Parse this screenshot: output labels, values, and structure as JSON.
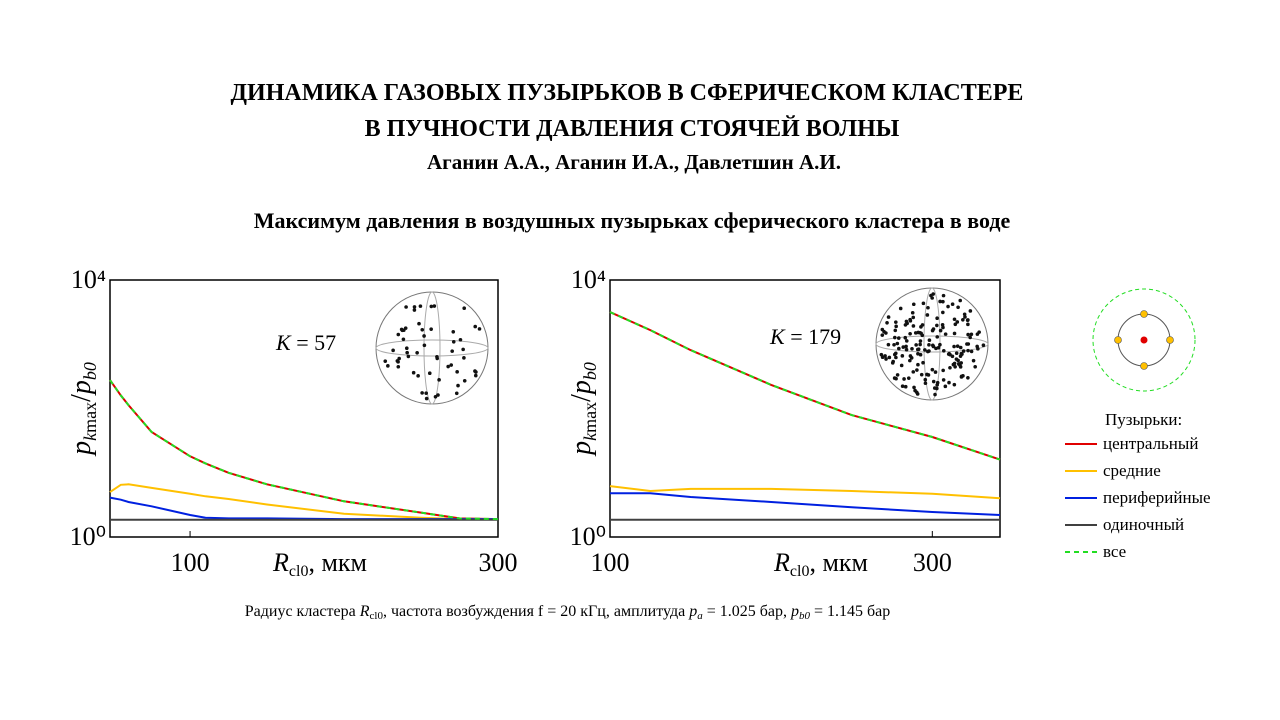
{
  "header": {
    "title_lines": [
      "ДИНАМИКА ГАЗОВЫХ ПУЗЫРЬКОВ В СФЕРИЧЕСКОМ КЛАСТЕРЕ",
      "В ПУЧНОСТИ ДАВЛЕНИЯ СТОЯЧЕЙ ВОЛНЫ"
    ],
    "authors": "Аганин А.А., Аганин И.А., Давлетшин А.И.",
    "subtitle": "Максимум давления в воздушных пузырьках сферического кластера в воде"
  },
  "chart_data": [
    {
      "type": "line",
      "log_y": true,
      "legend": "right",
      "legend_title": "Пузырьки:",
      "annotation": [
        "K",
        " = 57"
      ],
      "xlabel": [
        "R",
        "cl0",
        ", мкм"
      ],
      "ylabel": [
        "p",
        "k",
        "max",
        "/",
        "p",
        "b0"
      ],
      "xlim": [
        48,
        300
      ],
      "xticks": [
        100,
        300
      ],
      "ylim": [
        1,
        10000
      ],
      "yticks": [
        {
          "value": 1,
          "label": "10⁰"
        },
        {
          "value": 10000,
          "label": "10⁴"
        }
      ],
      "x": [
        48,
        55,
        60,
        75,
        100,
        110,
        125,
        150,
        200,
        250,
        275,
        300
      ],
      "series": [
        {
          "name": "центральный",
          "color": "#e00000",
          "values": [
            277,
            160,
            113,
            43,
            18,
            14,
            10,
            6.6,
            3.6,
            2.4,
            1.95,
            1.9
          ]
        },
        {
          "name": "средние",
          "color": "#ffc000",
          "values": [
            5,
            6.5,
            6.6,
            5.8,
            4.7,
            4.3,
            3.9,
            3.2,
            2.3,
            2,
            1.9,
            1.9
          ]
        },
        {
          "name": "периферийные",
          "color": "#0020e0",
          "values": [
            4.1,
            3.8,
            3.5,
            3,
            2.2,
            2,
            1.95,
            1.95,
            1.9,
            1.9,
            1.9,
            1.9
          ]
        },
        {
          "name": "одиночный",
          "color": "#404040",
          "values": [
            1.85,
            1.85,
            1.85,
            1.85,
            1.85,
            1.85,
            1.85,
            1.85,
            1.85,
            1.85,
            1.85,
            1.85
          ]
        },
        {
          "name": "все",
          "color": "#22dd22",
          "dashed": true,
          "values": [
            277,
            160,
            113,
            43,
            18,
            14,
            10,
            6.6,
            3.6,
            2.4,
            1.95,
            1.9
          ]
        }
      ]
    },
    {
      "type": "line",
      "log_y": true,
      "annotation": [
        "K",
        " = 179"
      ],
      "xlabel": [
        "R",
        "cl0",
        ", мкм"
      ],
      "ylabel": [
        "p",
        "k",
        "max",
        "/",
        "p",
        "b0"
      ],
      "xlim": [
        100,
        342
      ],
      "xticks": [
        100,
        300
      ],
      "ylim": [
        1,
        10000
      ],
      "yticks": [
        {
          "value": 1,
          "label": "10⁰"
        },
        {
          "value": 10000,
          "label": "10⁴"
        }
      ],
      "x": [
        100,
        125,
        150,
        200,
        250,
        300,
        342
      ],
      "series": [
        {
          "color": "#e00000",
          "values": [
            3160,
            1660,
            810,
            233,
            79,
            36,
            16
          ]
        },
        {
          "color": "#ffc000",
          "values": [
            6.2,
            5.2,
            5.6,
            5.6,
            5.2,
            4.7,
            4
          ]
        },
        {
          "color": "#0020e0",
          "values": [
            4.8,
            4.8,
            4.2,
            3.5,
            2.9,
            2.45,
            2.2
          ]
        },
        {
          "color": "#404040",
          "values": [
            1.85,
            1.85,
            1.85,
            1.85,
            1.85,
            1.85,
            1.85
          ]
        },
        {
          "color": "#22dd22",
          "dashed": true,
          "values": [
            3160,
            1660,
            810,
            233,
            79,
            36,
            16
          ]
        }
      ]
    }
  ],
  "caption": [
    "Радиус кластера ",
    "R",
    "cl0",
    ", частота возбуждения  f = 20 кГц, амплитуда ",
    "p",
    "a",
    " = 1.025 бар, ",
    "p",
    "b0",
    " = 1.145 бар"
  ]
}
